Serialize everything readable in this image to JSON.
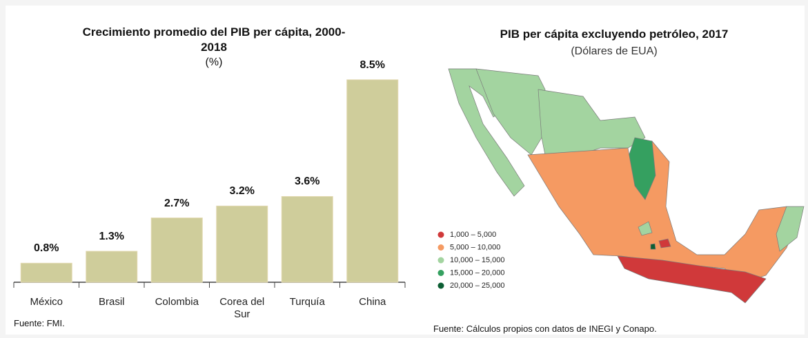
{
  "chart_data": {
    "type": "bar",
    "title": "Crecimiento promedio del PIB per cápita, 2000-2018",
    "subtitle": "(%)",
    "categories": [
      "México",
      "Brasil",
      "Colombia",
      "Corea del Sur",
      "Turquía",
      "China"
    ],
    "values": [
      0.8,
      1.3,
      2.7,
      3.2,
      3.6,
      8.5
    ],
    "value_labels": [
      "0.8%",
      "1.3%",
      "2.7%",
      "3.2%",
      "3.6%",
      "8.5%"
    ],
    "color": "#cfcd9b",
    "source": "Fuente: FMI."
  },
  "map": {
    "title": "PIB per cápita excluyendo petróleo, 2017",
    "subtitle": "(Dólares de EUA)",
    "legend": [
      {
        "label": "1,000 – 5,000",
        "color": "#d0393a"
      },
      {
        "label": "5,000 – 10,000",
        "color": "#f59a62"
      },
      {
        "label": "10,000 – 15,000",
        "color": "#a3d4a0"
      },
      {
        "label": "15,000 – 20,000",
        "color": "#35a060"
      },
      {
        "label": "20,000 – 25,000",
        "color": "#0c5e33"
      }
    ],
    "source": "Fuente: Cálculos propios con datos de INEGI y Conapo."
  }
}
